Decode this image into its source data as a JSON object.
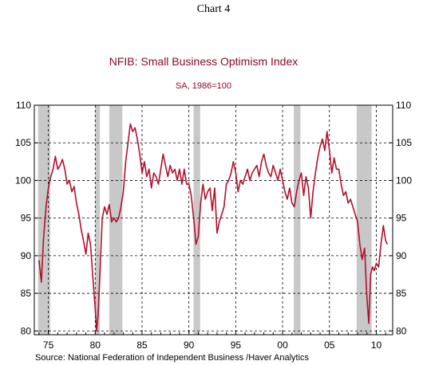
{
  "caption": "Chart 4",
  "chart_data": {
    "type": "line",
    "title": "NFIB: Small Business Optimism Index",
    "subtitle": "SA, 1986=100",
    "source": "Source:  National Federation of Independent Business /Haver Analytics",
    "xlabel": "",
    "ylabel": "",
    "xlim": [
      1973.5,
      2011.75
    ],
    "ylim": [
      79.5,
      110
    ],
    "x_ticks": [
      1975,
      1980,
      1985,
      1990,
      1995,
      2000,
      2005,
      2010
    ],
    "x_tick_labels": [
      "75",
      "80",
      "85",
      "90",
      "95",
      "00",
      "05",
      "10"
    ],
    "y_ticks": [
      80,
      85,
      90,
      95,
      100,
      105,
      110
    ],
    "y_tick_labels": [
      "80",
      "85",
      "90",
      "95",
      "100",
      "105",
      "110"
    ],
    "grid": true,
    "line_color": "#b0112f",
    "recession_color": "#c8c8c8",
    "recessions": [
      [
        1973.9,
        1975.2
      ],
      [
        1980.0,
        1980.5
      ],
      [
        1981.5,
        1982.9
      ],
      [
        1990.5,
        1991.2
      ],
      [
        2001.2,
        2001.9
      ],
      [
        2007.9,
        2009.5
      ]
    ],
    "series": [
      {
        "values": [
          [
            1974.0,
            89.4
          ],
          [
            1974.25,
            86.5
          ],
          [
            1974.5,
            92.5
          ],
          [
            1974.75,
            96.5
          ],
          [
            1975.0,
            99.0
          ],
          [
            1975.25,
            100.5
          ],
          [
            1975.5,
            101.5
          ],
          [
            1975.75,
            103.2
          ],
          [
            1976.0,
            101.5
          ],
          [
            1976.25,
            102.0
          ],
          [
            1976.5,
            102.8
          ],
          [
            1976.75,
            101.5
          ],
          [
            1977.0,
            99.5
          ],
          [
            1977.25,
            100.0
          ],
          [
            1977.5,
            98.5
          ],
          [
            1977.75,
            99.2
          ],
          [
            1978.0,
            97.0
          ],
          [
            1978.25,
            95.5
          ],
          [
            1978.5,
            93.5
          ],
          [
            1978.75,
            92.0
          ],
          [
            1979.0,
            90.2
          ],
          [
            1979.25,
            93.0
          ],
          [
            1979.5,
            91.5
          ],
          [
            1979.75,
            87.0
          ],
          [
            1980.0,
            83.0
          ],
          [
            1980.15,
            80.0
          ],
          [
            1980.3,
            82.0
          ],
          [
            1980.5,
            87.5
          ],
          [
            1980.75,
            95.0
          ],
          [
            1981.0,
            96.5
          ],
          [
            1981.25,
            95.5
          ],
          [
            1981.5,
            96.8
          ],
          [
            1981.75,
            94.5
          ],
          [
            1982.0,
            95.0
          ],
          [
            1982.25,
            94.5
          ],
          [
            1982.5,
            95.0
          ],
          [
            1982.75,
            96.5
          ],
          [
            1983.0,
            98.5
          ],
          [
            1983.25,
            102.5
          ],
          [
            1983.5,
            105.0
          ],
          [
            1983.75,
            107.5
          ],
          [
            1984.0,
            106.5
          ],
          [
            1984.25,
            107.0
          ],
          [
            1984.5,
            105.5
          ],
          [
            1984.75,
            103.5
          ],
          [
            1985.0,
            101.0
          ],
          [
            1985.25,
            102.5
          ],
          [
            1985.5,
            100.5
          ],
          [
            1985.75,
            101.5
          ],
          [
            1986.0,
            99.0
          ],
          [
            1986.25,
            101.0
          ],
          [
            1986.5,
            100.5
          ],
          [
            1986.75,
            99.5
          ],
          [
            1987.0,
            101.5
          ],
          [
            1987.25,
            103.5
          ],
          [
            1987.5,
            102.0
          ],
          [
            1987.75,
            100.5
          ],
          [
            1988.0,
            102.0
          ],
          [
            1988.25,
            101.0
          ],
          [
            1988.5,
            101.5
          ],
          [
            1988.75,
            100.0
          ],
          [
            1989.0,
            101.5
          ],
          [
            1989.25,
            99.5
          ],
          [
            1989.5,
            101.5
          ],
          [
            1989.75,
            99.5
          ],
          [
            1990.0,
            99.5
          ],
          [
            1990.25,
            98.0
          ],
          [
            1990.5,
            95.0
          ],
          [
            1990.75,
            91.5
          ],
          [
            1991.0,
            92.5
          ],
          [
            1991.25,
            97.0
          ],
          [
            1991.5,
            99.5
          ],
          [
            1991.75,
            97.5
          ],
          [
            1992.0,
            98.5
          ],
          [
            1992.25,
            99.0
          ],
          [
            1992.5,
            96.0
          ],
          [
            1992.75,
            99.0
          ],
          [
            1993.0,
            93.0
          ],
          [
            1993.25,
            94.5
          ],
          [
            1993.5,
            95.5
          ],
          [
            1993.75,
            96.5
          ],
          [
            1994.0,
            99.5
          ],
          [
            1994.25,
            100.0
          ],
          [
            1994.5,
            101.0
          ],
          [
            1994.75,
            102.5
          ],
          [
            1995.0,
            101.0
          ],
          [
            1995.25,
            98.5
          ],
          [
            1995.5,
            100.0
          ],
          [
            1995.75,
            99.5
          ],
          [
            1996.0,
            100.5
          ],
          [
            1996.25,
            101.5
          ],
          [
            1996.5,
            100.0
          ],
          [
            1996.75,
            101.0
          ],
          [
            1997.0,
            101.5
          ],
          [
            1997.25,
            102.0
          ],
          [
            1997.5,
            100.5
          ],
          [
            1997.75,
            102.5
          ],
          [
            1998.0,
            103.5
          ],
          [
            1998.25,
            102.0
          ],
          [
            1998.5,
            101.0
          ],
          [
            1998.75,
            100.5
          ],
          [
            1999.0,
            102.0
          ],
          [
            1999.25,
            101.0
          ],
          [
            1999.5,
            100.0
          ],
          [
            1999.75,
            101.5
          ],
          [
            2000.0,
            100.0
          ],
          [
            2000.25,
            98.5
          ],
          [
            2000.5,
            97.5
          ],
          [
            2000.75,
            99.0
          ],
          [
            2001.0,
            97.0
          ],
          [
            2001.25,
            96.5
          ],
          [
            2001.5,
            98.5
          ],
          [
            2001.75,
            100.0
          ],
          [
            2002.0,
            101.0
          ],
          [
            2002.25,
            98.0
          ],
          [
            2002.5,
            100.5
          ],
          [
            2002.75,
            99.0
          ],
          [
            2003.0,
            95.0
          ],
          [
            2003.25,
            98.5
          ],
          [
            2003.5,
            101.0
          ],
          [
            2003.75,
            103.0
          ],
          [
            2004.0,
            104.5
          ],
          [
            2004.25,
            105.5
          ],
          [
            2004.5,
            104.0
          ],
          [
            2004.75,
            106.5
          ],
          [
            2005.0,
            104.0
          ],
          [
            2005.25,
            101.0
          ],
          [
            2005.5,
            103.0
          ],
          [
            2005.75,
            101.5
          ],
          [
            2006.0,
            101.5
          ],
          [
            2006.25,
            99.5
          ],
          [
            2006.5,
            98.0
          ],
          [
            2006.75,
            98.5
          ],
          [
            2007.0,
            97.0
          ],
          [
            2007.25,
            97.5
          ],
          [
            2007.5,
            96.5
          ],
          [
            2007.75,
            95.5
          ],
          [
            2008.0,
            94.5
          ],
          [
            2008.25,
            91.5
          ],
          [
            2008.5,
            89.5
          ],
          [
            2008.75,
            91.0
          ],
          [
            2009.0,
            84.5
          ],
          [
            2009.2,
            81.0
          ],
          [
            2009.4,
            87.5
          ],
          [
            2009.6,
            88.5
          ],
          [
            2009.8,
            88.0
          ],
          [
            2010.0,
            89.0
          ],
          [
            2010.25,
            88.5
          ],
          [
            2010.5,
            91.5
          ],
          [
            2010.75,
            94.0
          ],
          [
            2011.0,
            92.0
          ],
          [
            2011.2,
            91.5
          ]
        ]
      }
    ]
  }
}
